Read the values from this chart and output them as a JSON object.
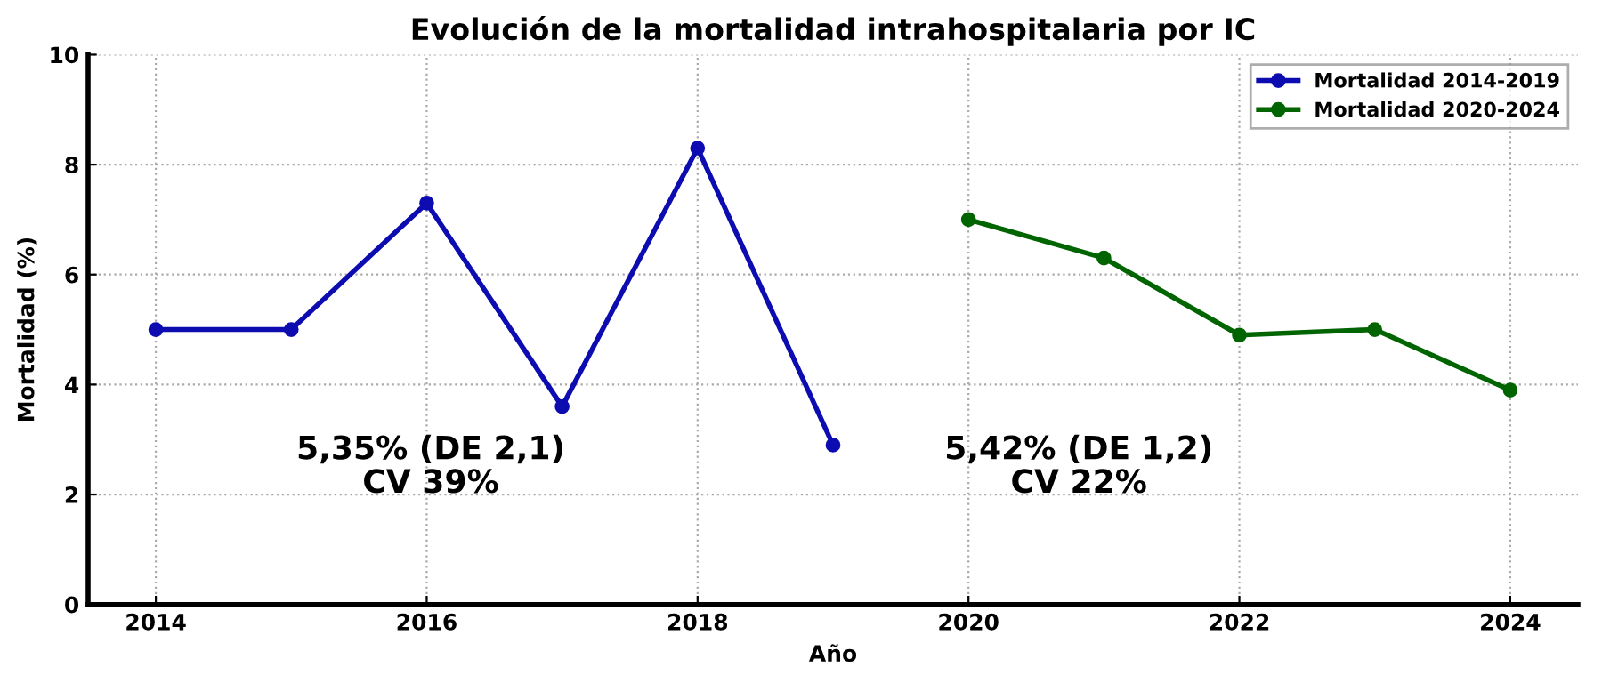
{
  "chart_data": {
    "type": "line",
    "title": "Evolución de la mortalidad intrahospitalaria por IC",
    "xlabel": "Año",
    "ylabel": "Mortalidad (%)",
    "series": [
      {
        "name": "Mortalidad 2014-2019",
        "color": "#0c0cb0",
        "x": [
          2014,
          2015,
          2016,
          2017,
          2018,
          2019
        ],
        "values": [
          5.0,
          5.0,
          7.3,
          3.6,
          8.3,
          2.9
        ]
      },
      {
        "name": "Mortalidad 2020-2024",
        "color": "#006400",
        "x": [
          2020,
          2021,
          2022,
          2023,
          2024
        ],
        "values": [
          7.0,
          6.3,
          4.9,
          5.0,
          3.9
        ]
      }
    ],
    "annotations": [
      "5,35% (DE 2,1)\nCV 39%",
      "5,42% (DE 1,2)\nCV 22%"
    ],
    "xlim": [
      2013.5,
      2024.5
    ],
    "xticks": [
      2014,
      2016,
      2018,
      2020,
      2022,
      2024
    ],
    "ylim": [
      0,
      10
    ],
    "yticks": [
      0,
      2,
      4,
      6,
      8,
      10
    ],
    "grid": true,
    "legend": "top right",
    "marker": "circle",
    "line_style": "solid"
  }
}
